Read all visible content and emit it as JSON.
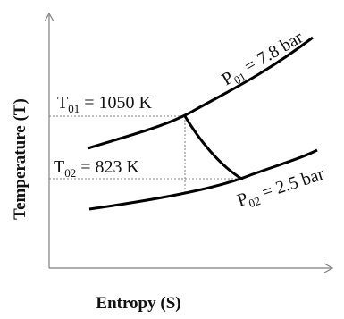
{
  "axes": {
    "x_title": "Entropy (S)",
    "y_title": "Temperature (T)"
  },
  "isobars": [
    {
      "prefix": "P",
      "subscript": "01",
      "suffix": " = 7.8 bar"
    },
    {
      "prefix": "P",
      "subscript": "02",
      "suffix": " = 2.5 bar"
    }
  ],
  "temperatures": [
    {
      "prefix": "T",
      "subscript": "01",
      "suffix": " = 1050 K"
    },
    {
      "prefix": "T",
      "subscript": "02",
      "suffix": " = 823 K"
    }
  ],
  "colors": {
    "line": "#000000",
    "axis": "#7f7f7f",
    "dotted": "#7f7f7f"
  }
}
